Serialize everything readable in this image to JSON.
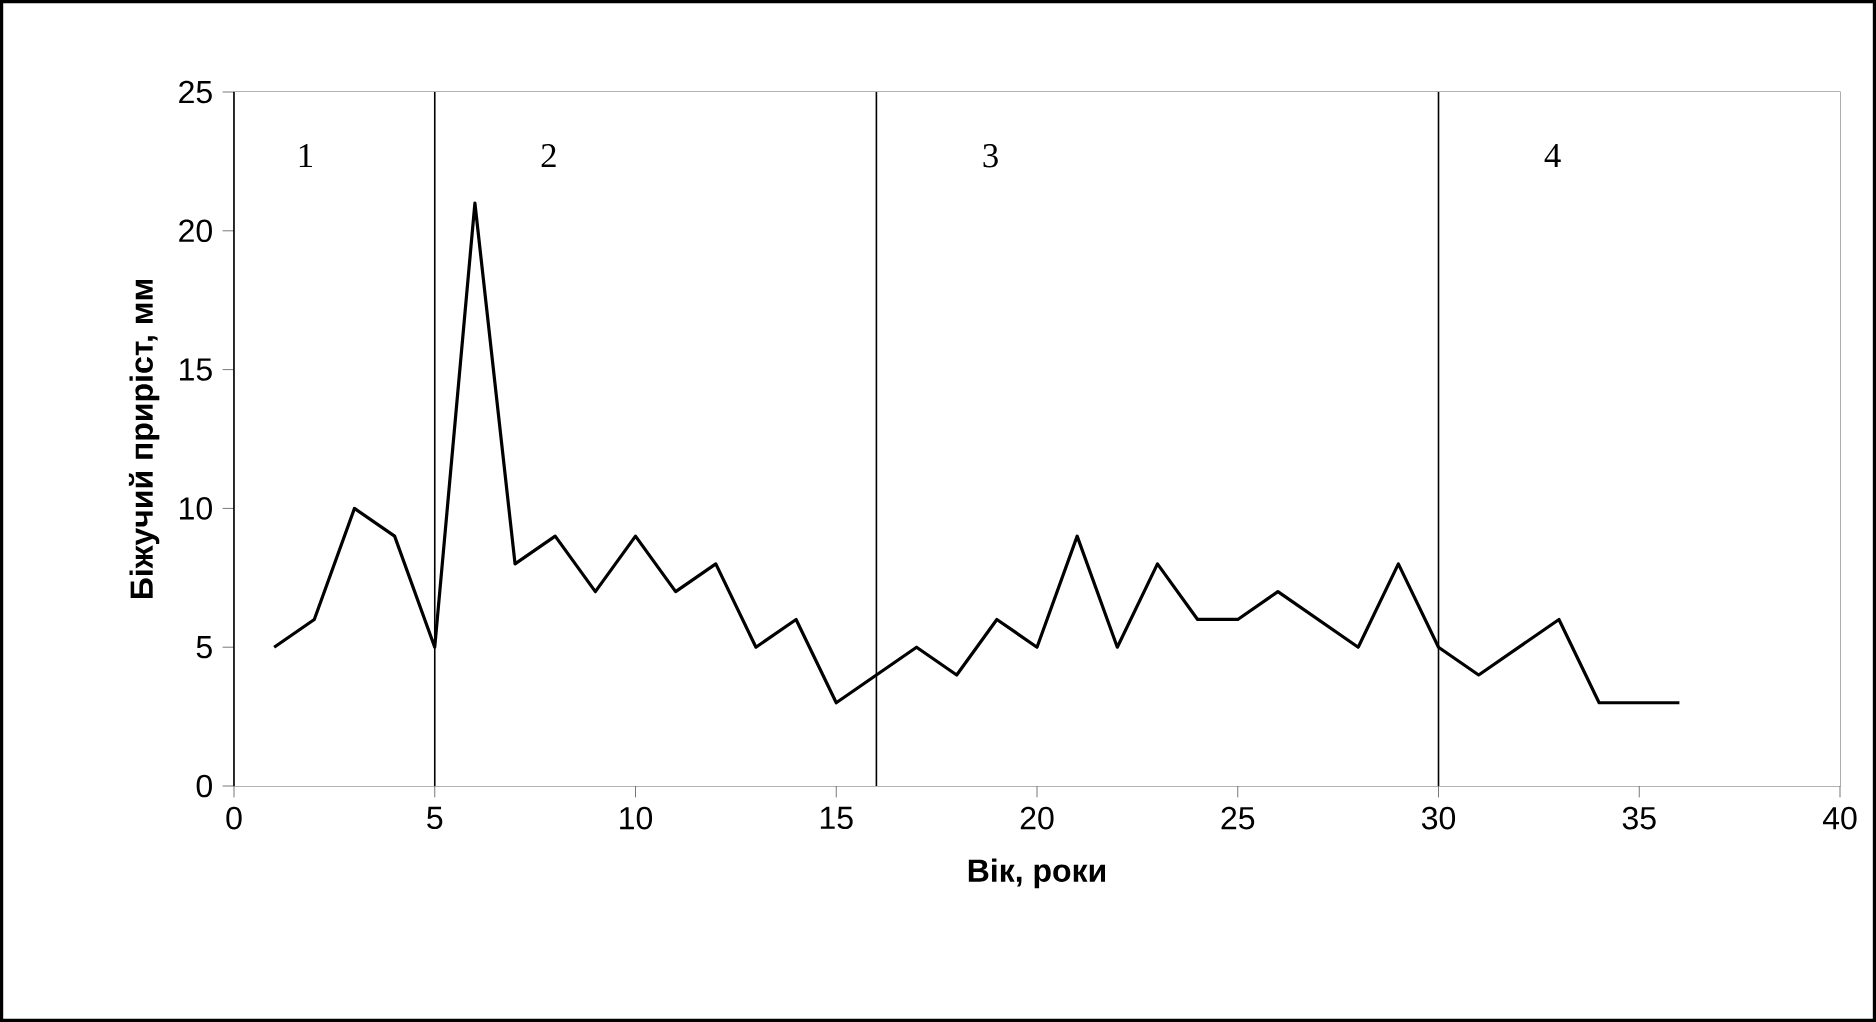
{
  "chart_data": {
    "type": "line",
    "xlabel": "Вік, роки",
    "ylabel": "Біжучий приріст, мм",
    "x": [
      1,
      2,
      3,
      4,
      5,
      6,
      7,
      8,
      9,
      10,
      11,
      12,
      13,
      14,
      15,
      16,
      17,
      18,
      19,
      20,
      21,
      22,
      23,
      24,
      25,
      26,
      27,
      28,
      29,
      30,
      31,
      32,
      33,
      34,
      35,
      36
    ],
    "series": [
      {
        "color": "#000000",
        "values": [
          5,
          6,
          10,
          9,
          5,
          21,
          8,
          9,
          7,
          9,
          7,
          8,
          5,
          6,
          3,
          4,
          5,
          4,
          6,
          5,
          9,
          5,
          8,
          6,
          6,
          7,
          6,
          5,
          8,
          5,
          4,
          5,
          6,
          3,
          3,
          3
        ]
      }
    ],
    "xlim": [
      0,
      40
    ],
    "ylim": [
      0,
      25
    ],
    "xticks": [
      0,
      5,
      10,
      15,
      20,
      25,
      30,
      35,
      40
    ],
    "yticks": [
      0,
      5,
      10,
      15,
      20,
      25
    ],
    "bands": [
      {
        "axis": "x",
        "from": 0,
        "to": 5,
        "label": "1",
        "color": "#ffffff"
      },
      {
        "axis": "x",
        "from": 5,
        "to": 16,
        "label": "2",
        "color": "#ffffff"
      },
      {
        "axis": "x",
        "from": 16,
        "to": 30,
        "label": "3",
        "color": "#ffffff"
      },
      {
        "axis": "x",
        "from": 30,
        "to": 40,
        "label": "4",
        "color": "#ffffff"
      }
    ]
  }
}
